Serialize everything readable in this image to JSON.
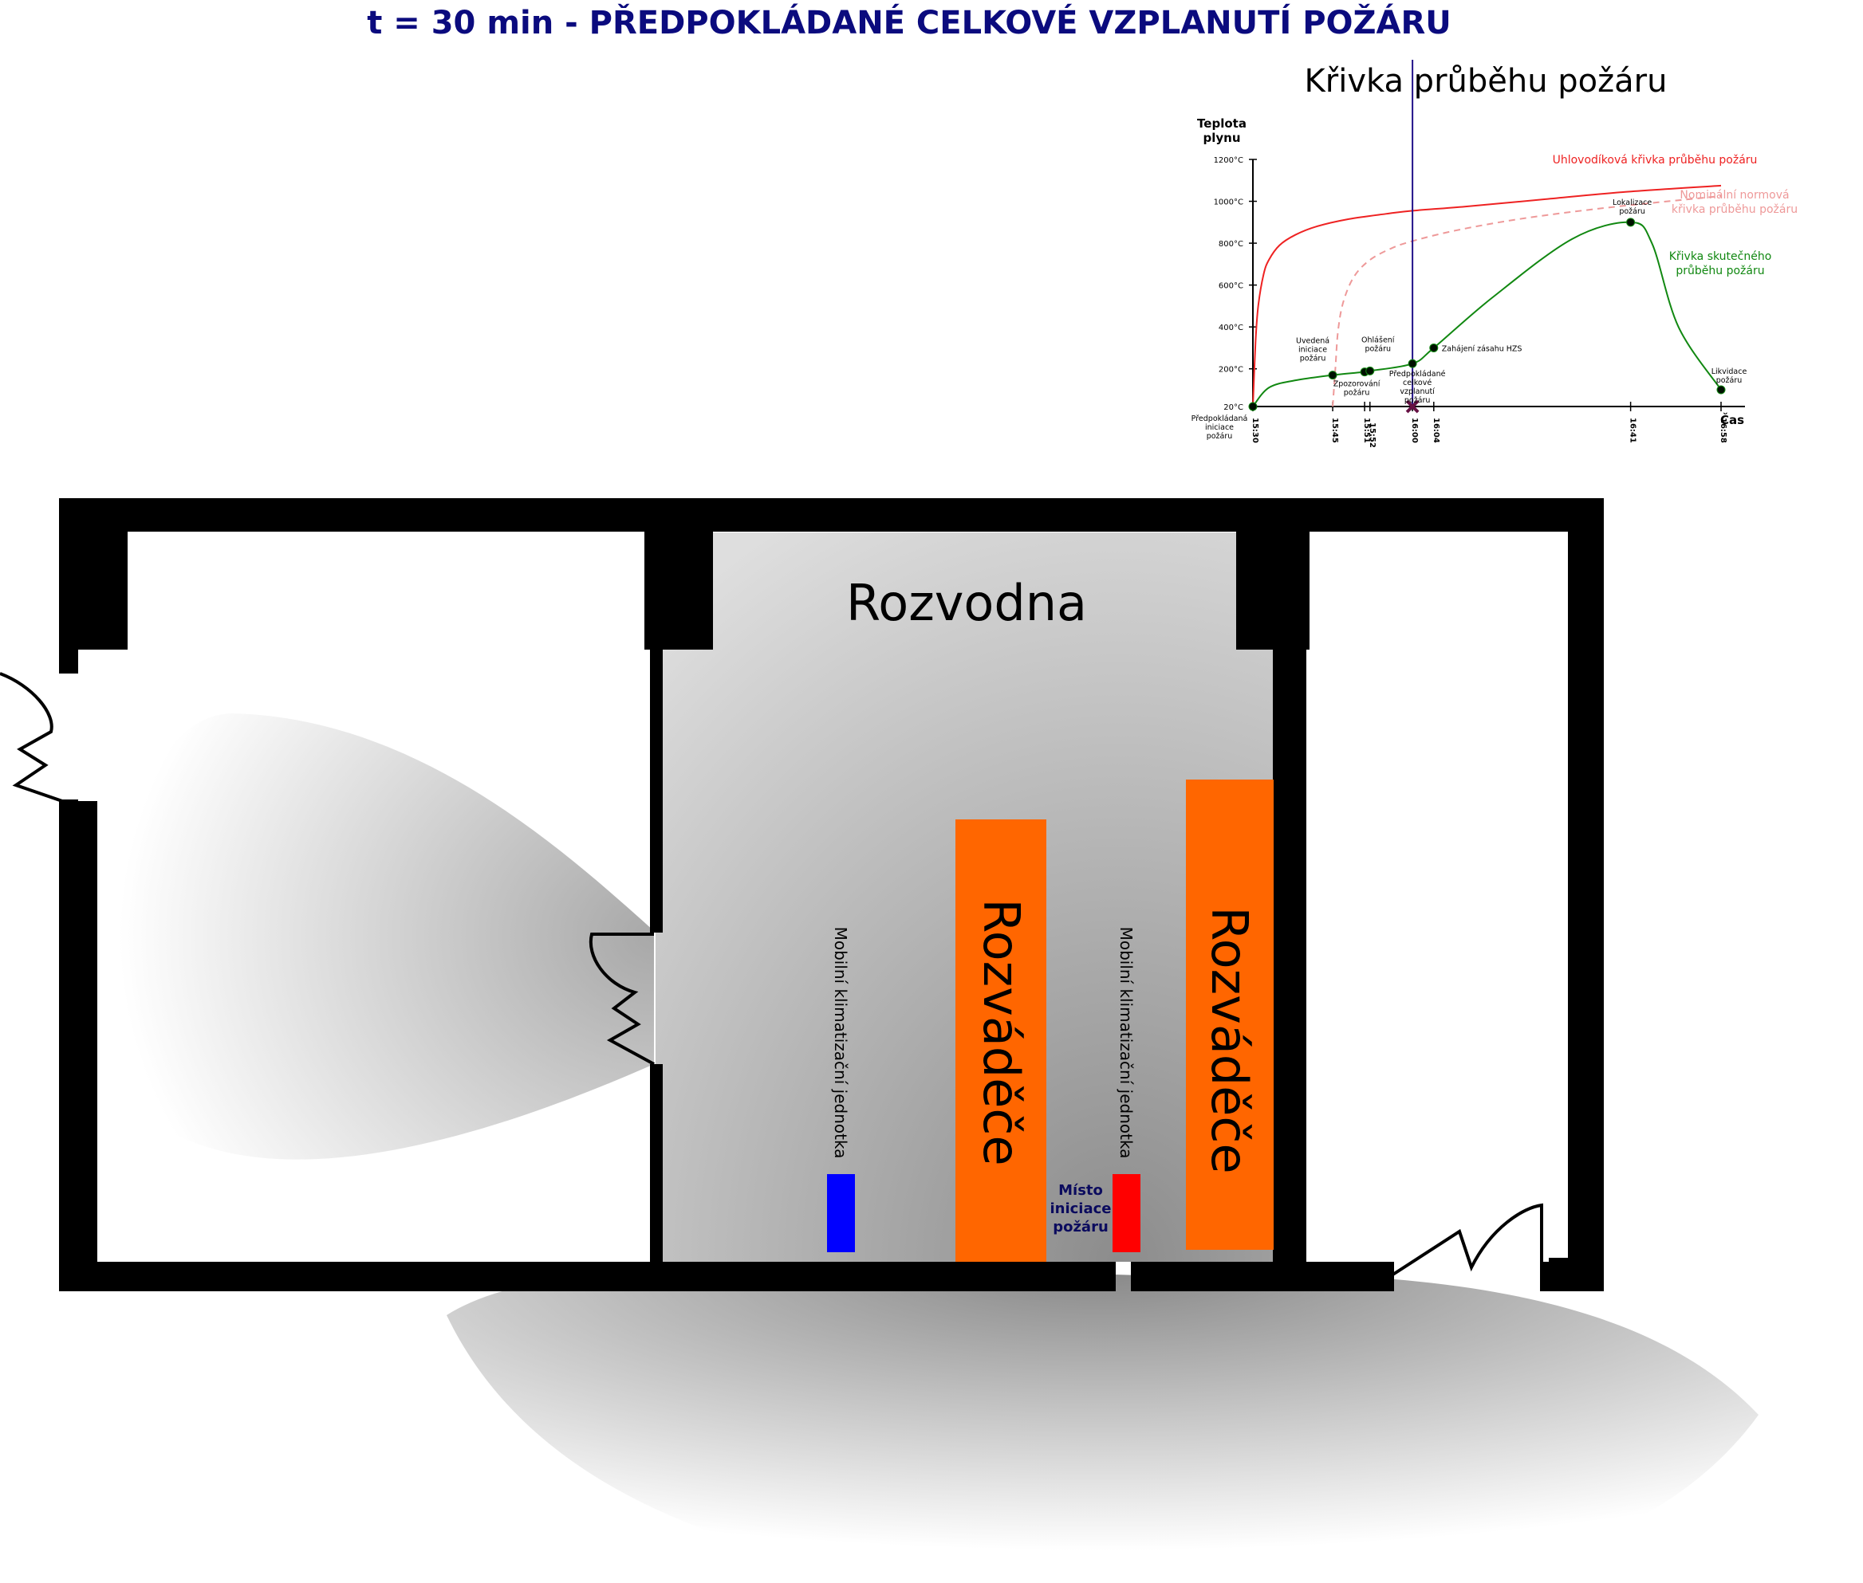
{
  "title": "t = 30 min -  PŘEDPOKLÁDANÉ CELKOVÉ VZPLANUTÍ POŽÁRU",
  "colors": {
    "title": "#0b0b7e",
    "cabinet": "#ff6600",
    "unit_blue": "#0000ff",
    "unit_red": "#ff0000",
    "curve_hydrocarbon": "#ee2222",
    "curve_nominal": "#ee9999",
    "curve_actual": "#118811",
    "timeline": "#221188",
    "marker": "#661144"
  },
  "floorplan": {
    "room_label": "Rozvodna",
    "cabinet_label": "Rozváděče",
    "unit_label": "Mobilní klimatizační jednotka",
    "ignition_label": [
      "Místo",
      "iniciace",
      "požáru"
    ]
  },
  "chart_data": {
    "type": "line",
    "title": "Křivka průběhu požáru",
    "ylabel": [
      "Teplota",
      "plynu"
    ],
    "xlabel": "Čas",
    "y_ticks": [
      "20°C",
      "200°C",
      "400°C",
      "600°C",
      "800°C",
      "1000°C",
      "1200°C"
    ],
    "ylim": [
      0,
      1200
    ],
    "x_ticks": [
      "15:30",
      "15:45",
      "15:51",
      "15:52",
      "16:00",
      "16:04",
      "16:41",
      "16:58"
    ],
    "x_ticks_minutes": [
      0,
      15,
      21,
      22,
      30,
      34,
      71,
      88
    ],
    "xlim_minutes": [
      0,
      93
    ],
    "current_time": "16:00",
    "series": [
      {
        "name": "Uhlovodíková křivka průběhu požáru",
        "style": "solid",
        "color": "#ee2222",
        "x_minutes": [
          0,
          0.5,
          1,
          2,
          3,
          5,
          8,
          12,
          18,
          25,
          30,
          40,
          55,
          70,
          88
        ],
        "y": [
          20,
          330,
          500,
          650,
          720,
          790,
          840,
          880,
          915,
          940,
          955,
          975,
          1010,
          1045,
          1075
        ]
      },
      {
        "name": [
          "Nominální normová",
          "křivka průběhu požáru"
        ],
        "style": "dashed",
        "color": "#ee9999",
        "x_minutes": [
          15,
          15.5,
          16,
          17,
          19,
          22,
          26,
          30,
          38,
          50,
          65,
          80,
          88
        ],
        "y": [
          20,
          200,
          380,
          520,
          640,
          720,
          775,
          810,
          860,
          915,
          965,
          1005,
          1025
        ]
      },
      {
        "name": [
          "Křivka skutečného",
          "průběhu požáru"
        ],
        "style": "solid",
        "color": "#118811",
        "x_minutes": [
          0,
          3,
          8,
          15,
          21,
          22,
          30,
          34,
          45,
          60,
          71,
          75,
          80,
          88
        ],
        "y": [
          20,
          110,
          145,
          170,
          185,
          190,
          225,
          300,
          540,
          820,
          900,
          800,
          400,
          100
        ]
      }
    ],
    "events": [
      {
        "label": [
          "Předpokládaná",
          "iniciace",
          "požáru"
        ],
        "x_minutes": 0,
        "y": 20
      },
      {
        "label": [
          "Uvedená",
          "iniciace",
          "požáru"
        ],
        "x_minutes": 15,
        "y": 170
      },
      {
        "label": [
          "Zpozorování",
          "požáru"
        ],
        "x_minutes": 21,
        "y": 185
      },
      {
        "label": [
          "Ohlášení",
          "požáru"
        ],
        "x_minutes": 22,
        "y": 190
      },
      {
        "label": [
          "Předpokládané",
          "celkové",
          "vzplanutí",
          "požáru"
        ],
        "x_minutes": 30,
        "y": 225
      },
      {
        "label": [
          "Zahájení zásahu HZS"
        ],
        "x_minutes": 34,
        "y": 300
      },
      {
        "label": [
          "Lokalizace",
          "požáru"
        ],
        "x_minutes": 71,
        "y": 900
      },
      {
        "label": [
          "Likvidace",
          "požáru"
        ],
        "x_minutes": 88,
        "y": 100
      }
    ]
  }
}
